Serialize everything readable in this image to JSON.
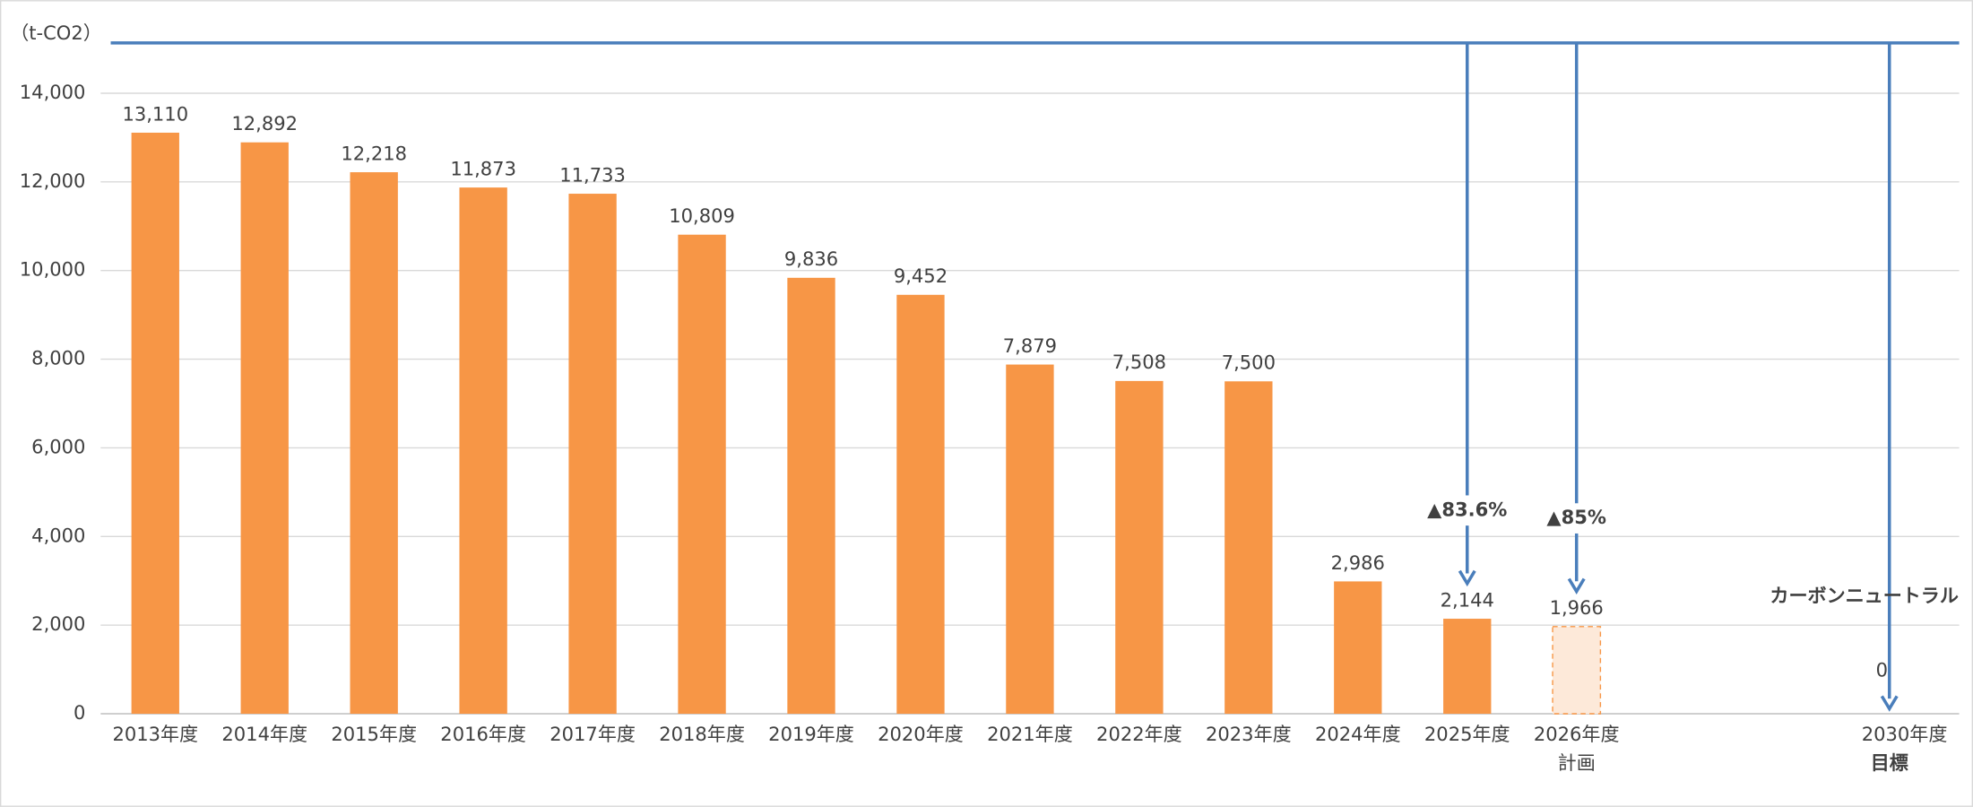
{
  "chart_data": {
    "type": "bar",
    "unit_label": "（t-CO2）",
    "categories": [
      "2013年度",
      "2014年度",
      "2015年度",
      "2016年度",
      "2017年度",
      "2018年度",
      "2019年度",
      "2020年度",
      "2021年度",
      "2022年度",
      "2023年度",
      "2024年度",
      "2025年度",
      "2026年度",
      null,
      null,
      "2030年度"
    ],
    "category_notes": [
      null,
      null,
      null,
      null,
      null,
      null,
      null,
      null,
      null,
      null,
      null,
      null,
      null,
      "計画",
      null,
      null,
      "目標"
    ],
    "values": [
      13110,
      12892,
      12218,
      11873,
      11733,
      10809,
      9836,
      9452,
      7879,
      7508,
      7500,
      2986,
      2144,
      1966,
      null,
      null,
      0
    ],
    "value_labels": [
      "13,110",
      "12,892",
      "12,218",
      "11,873",
      "11,733",
      "10,809",
      "9,836",
      "9,452",
      "7,879",
      "7,508",
      "7,500",
      "2,986",
      "2,144",
      "1,966",
      null,
      null,
      "0"
    ],
    "colors": [
      "#f79646",
      "#f79646",
      "#f79646",
      "#f79646",
      "#f79646",
      "#f79646",
      "#f79646",
      "#f79646",
      "#f79646",
      "#f79646",
      "#f79646",
      "#f79646",
      "#f79646",
      "#fde9d9",
      null,
      null,
      null
    ],
    "arrow_labels": [
      null,
      null,
      null,
      null,
      null,
      null,
      null,
      null,
      null,
      null,
      null,
      null,
      "▲83.6%",
      "▲85%",
      null,
      null,
      "カーボンニュートラル"
    ],
    "color": "#f79646",
    "ylim": [
      0,
      14000
    ],
    "yticks": [
      0,
      {
        "value": 2000,
        "label": "2,000"
      },
      {
        "value": 4000,
        "label": "4,000"
      },
      {
        "value": 6000,
        "label": "6,000"
      },
      {
        "value": 8000,
        "label": "8,000"
      },
      {
        "value": 10000,
        "label": "10,000"
      },
      {
        "value": 12000,
        "label": "12,000"
      },
      {
        "value": 14000,
        "label": "14,000"
      }
    ],
    "grid": true
  }
}
